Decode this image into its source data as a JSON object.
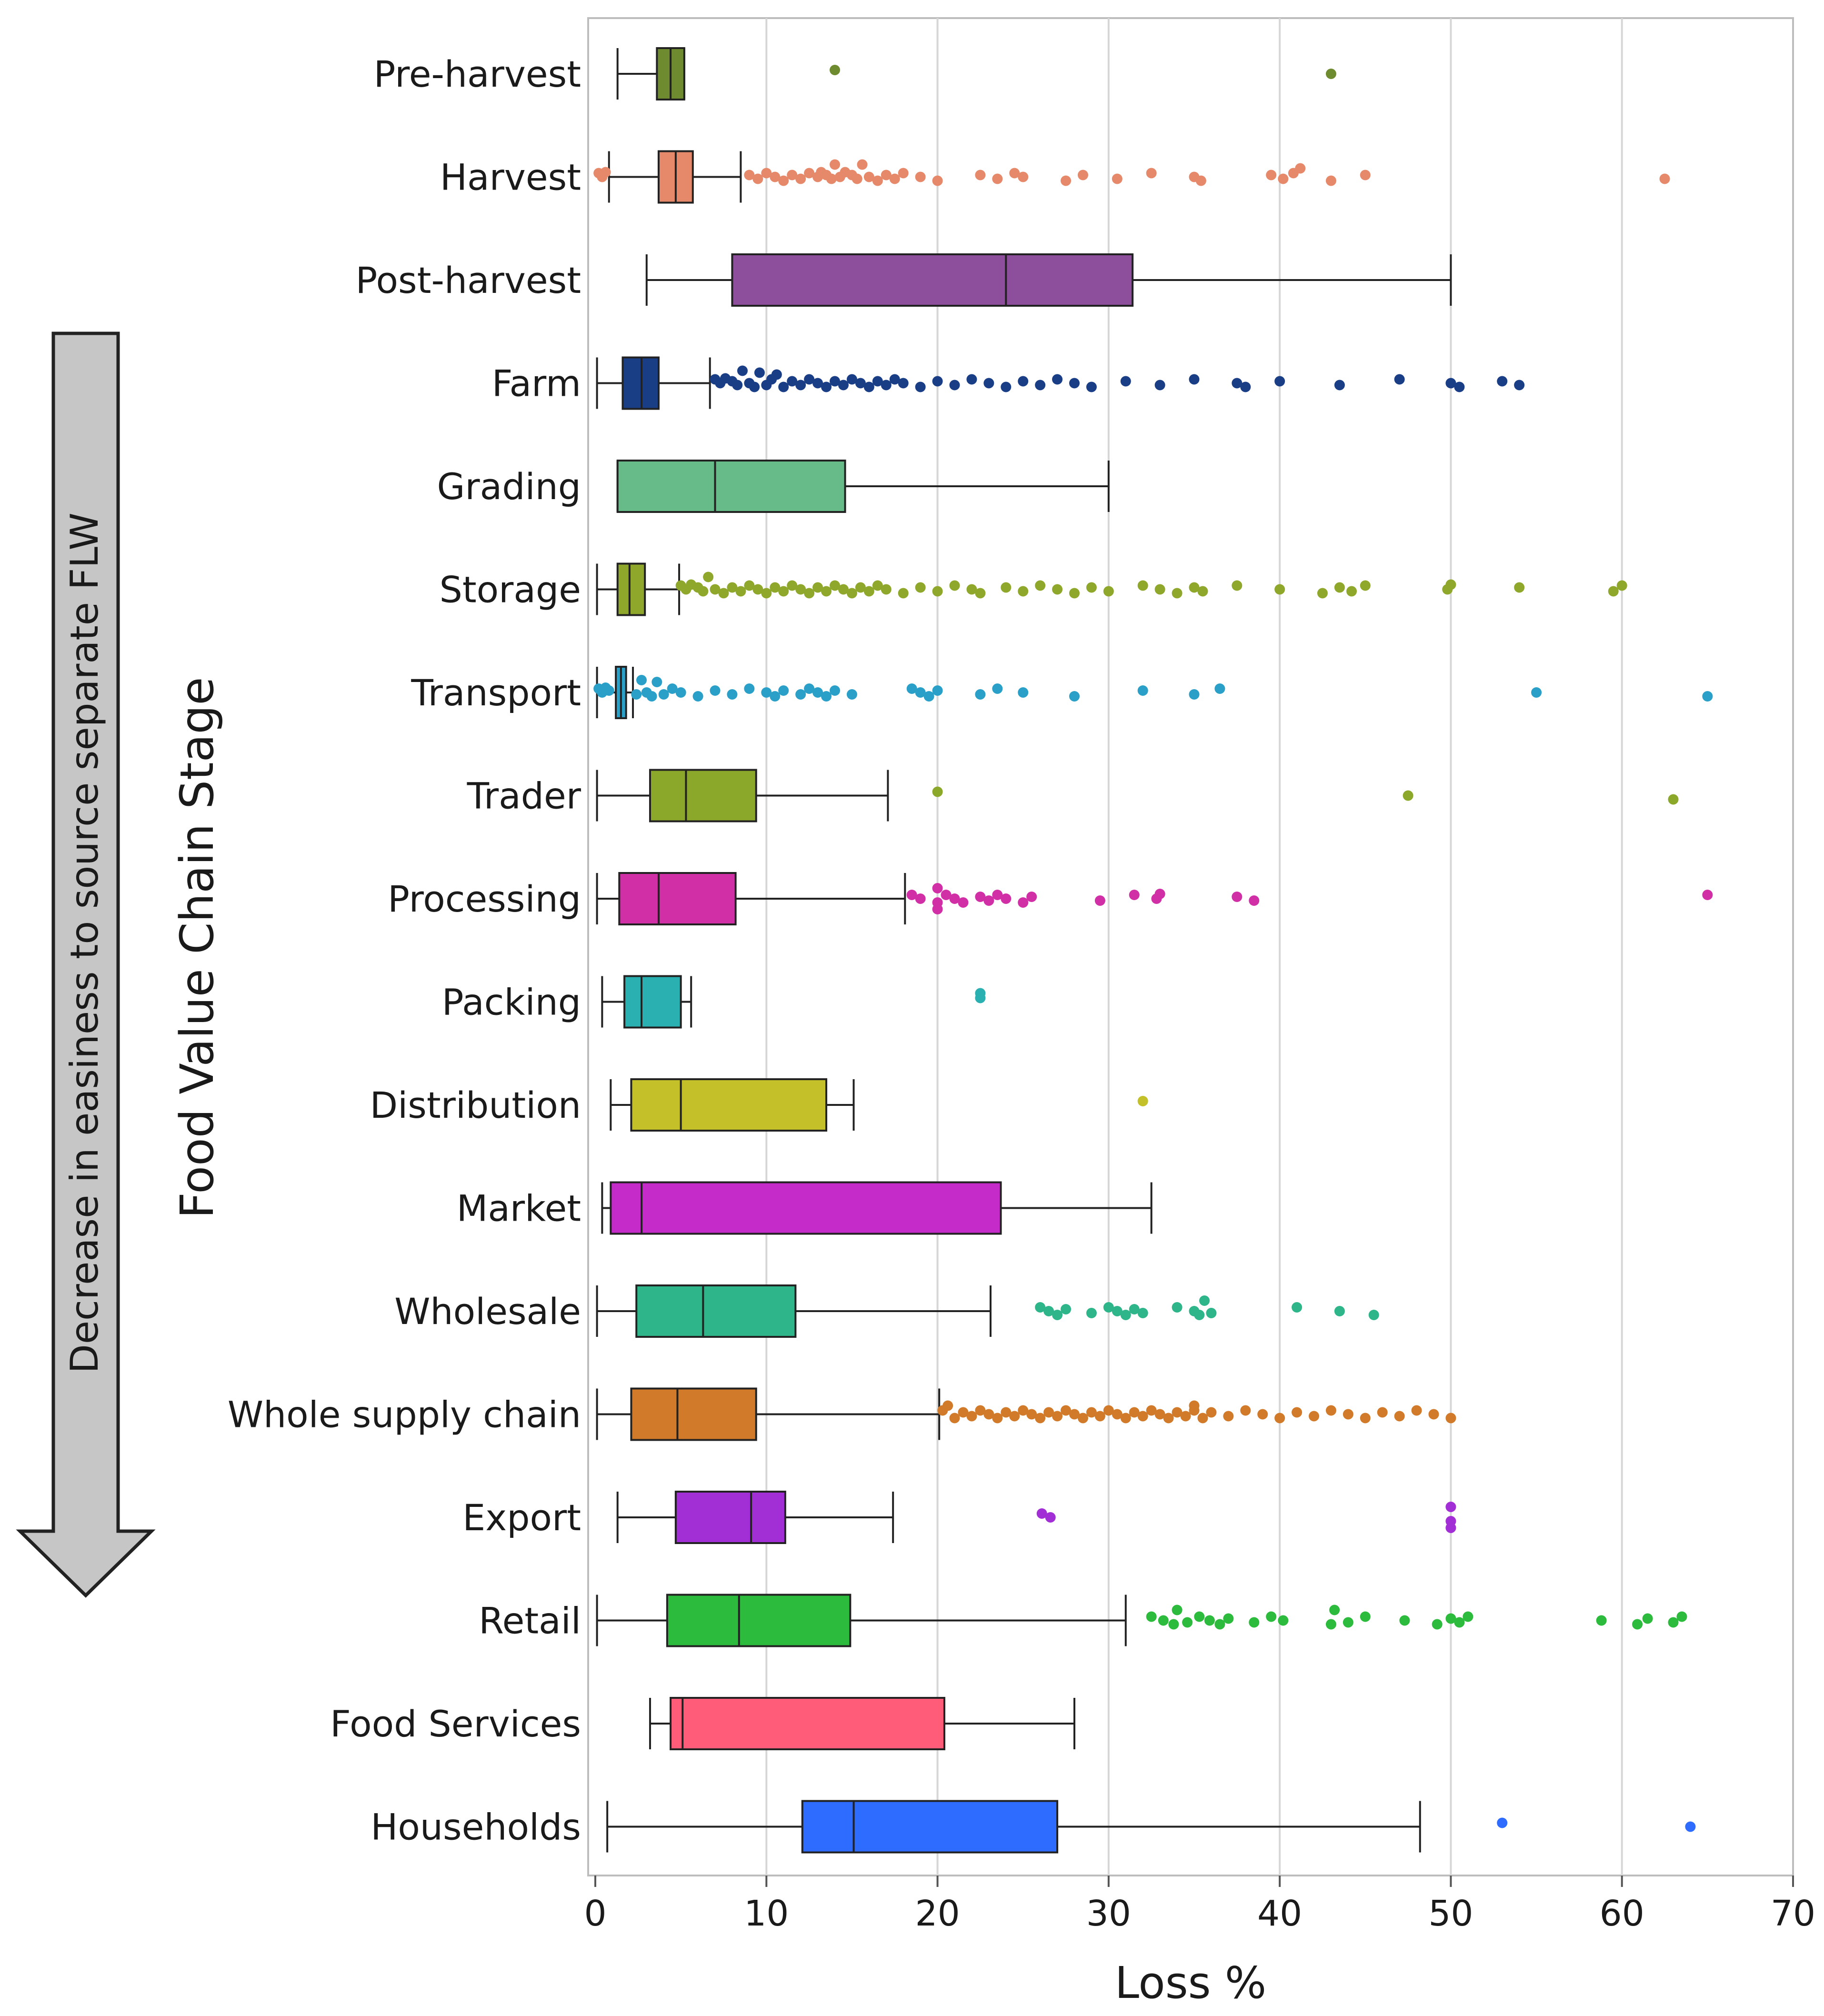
{
  "chart_data": {
    "type": "boxplot",
    "xlabel": "Loss %",
    "ylabel": "Food Value Chain Stage",
    "xlim": [
      0,
      70
    ],
    "xticks": [
      0,
      10,
      20,
      30,
      40,
      50,
      60,
      70
    ],
    "grid": "vertical",
    "arrow_label": "Decrease in easiness to source separate FLW",
    "stages": [
      {
        "name": "Pre-harvest",
        "color": "#6e8b2f",
        "whisker_low": 1.3,
        "q1": 3.6,
        "median": 4.4,
        "q3": 5.2,
        "whisker_high": 5.2,
        "outliers": [
          14,
          43
        ]
      },
      {
        "name": "Harvest",
        "color": "#e5896a",
        "whisker_low": 0.8,
        "q1": 3.7,
        "median": 4.7,
        "q3": 5.7,
        "whisker_high": 8.5,
        "outliers": [
          0.2,
          0.4,
          0.6,
          9,
          9.5,
          10,
          10.5,
          11,
          11.5,
          12,
          12.5,
          13,
          13.2,
          13.5,
          13.8,
          14,
          14.3,
          14.6,
          15,
          15.3,
          15.6,
          16,
          16.5,
          17,
          17.5,
          18,
          19,
          20,
          22.5,
          23.5,
          24.5,
          25,
          27.5,
          28.5,
          30.5,
          32.5,
          35,
          35.4,
          39.5,
          40.2,
          40.8,
          41.2,
          43,
          45,
          62.5
        ]
      },
      {
        "name": "Post-harvest",
        "color": "#8d4f9c",
        "whisker_low": 3,
        "q1": 8,
        "median": 24,
        "q3": 31.4,
        "whisker_high": 50,
        "outliers": []
      },
      {
        "name": "Farm",
        "color": "#1a3e86",
        "whisker_low": 0.1,
        "q1": 1.6,
        "median": 2.7,
        "q3": 3.7,
        "whisker_high": 6.7,
        "outliers": [
          7,
          7.3,
          7.6,
          8,
          8.3,
          8.6,
          9,
          9.3,
          9.6,
          10,
          10.3,
          10.6,
          11,
          11.5,
          12,
          12.5,
          13,
          13.5,
          14,
          14.5,
          15,
          15.5,
          16,
          16.5,
          17,
          17.5,
          18,
          19,
          20,
          21,
          22,
          23,
          24,
          25,
          26,
          27,
          28,
          29,
          31,
          33,
          35,
          37.5,
          38,
          40,
          43.5,
          47,
          50,
          50.5,
          53,
          54
        ]
      },
      {
        "name": "Grading",
        "color": "#66bb88",
        "whisker_low": 1.3,
        "q1": 1.3,
        "median": 7,
        "q3": 14.6,
        "whisker_high": 30,
        "outliers": []
      },
      {
        "name": "Storage",
        "color": "#8fa82c",
        "whisker_low": 0.1,
        "q1": 1.3,
        "median": 2,
        "q3": 2.9,
        "whisker_high": 4.9,
        "outliers": [
          5,
          5.3,
          5.6,
          6,
          6.3,
          6.6,
          7,
          7.5,
          8,
          8.5,
          9,
          9.5,
          10,
          10.5,
          11,
          11.5,
          12,
          12.5,
          13,
          13.5,
          14,
          14.5,
          15,
          15.5,
          16,
          16.5,
          17,
          18,
          19,
          20,
          21,
          22,
          22.5,
          24,
          25,
          26,
          27,
          28,
          29,
          30,
          32,
          33,
          34,
          35,
          35.5,
          37.5,
          40,
          42.5,
          43.5,
          44.2,
          45,
          49.8,
          50,
          54,
          59.5,
          60
        ]
      },
      {
        "name": "Transport",
        "color": "#2aa0c9",
        "whisker_low": 0.1,
        "q1": 1.2,
        "median": 1.5,
        "q3": 1.8,
        "whisker_high": 2.2,
        "outliers": [
          0.2,
          0.4,
          0.6,
          0.8,
          2.4,
          2.7,
          3,
          3.3,
          3.6,
          4,
          4.5,
          5,
          6,
          7,
          8,
          9,
          10,
          10.5,
          11,
          12,
          12.5,
          13,
          13.5,
          14,
          15,
          18.5,
          19,
          19.5,
          20,
          22.5,
          23.5,
          25,
          28,
          32,
          35,
          36.5,
          55,
          65
        ]
      },
      {
        "name": "Trader",
        "color": "#8ca82a",
        "whisker_low": 0.1,
        "q1": 3.2,
        "median": 5.3,
        "q3": 9.4,
        "whisker_high": 17.1,
        "outliers": [
          20,
          47.5,
          63
        ]
      },
      {
        "name": "Processing",
        "color": "#d02fa5",
        "whisker_low": 0.1,
        "q1": 1.4,
        "median": 3.7,
        "q3": 8.2,
        "whisker_high": 18.1,
        "outliers": [
          18.5,
          19,
          20,
          20,
          20,
          20.5,
          21,
          21.5,
          22.5,
          23,
          23.5,
          24,
          25,
          25.5,
          29.5,
          31.5,
          32.8,
          33,
          37.5,
          38.5,
          65
        ]
      },
      {
        "name": "Packing",
        "color": "#2ab0b0",
        "whisker_low": 0.4,
        "q1": 1.7,
        "median": 2.7,
        "q3": 5,
        "whisker_high": 5.6,
        "outliers": [
          22.5,
          22.5
        ]
      },
      {
        "name": "Distribution",
        "color": "#c3c029",
        "whisker_low": 0.9,
        "q1": 2.1,
        "median": 5,
        "q3": 13.5,
        "whisker_high": 15.1,
        "outliers": [
          32
        ]
      },
      {
        "name": "Market",
        "color": "#c42bc9",
        "whisker_low": 0.4,
        "q1": 0.9,
        "median": 2.7,
        "q3": 23.7,
        "whisker_high": 32.5,
        "outliers": []
      },
      {
        "name": "Wholesale",
        "color": "#2fb58a",
        "whisker_low": 0.1,
        "q1": 2.4,
        "median": 6.3,
        "q3": 11.7,
        "whisker_high": 23.1,
        "outliers": [
          26,
          26.5,
          27,
          27.5,
          29,
          30,
          30.5,
          31,
          31.5,
          32,
          34,
          35,
          35.3,
          35.6,
          36,
          41,
          43.5,
          45.5
        ]
      },
      {
        "name": "Whole supply chain",
        "color": "#d07a2a",
        "whisker_low": 0.1,
        "q1": 2.1,
        "median": 4.8,
        "q3": 9.4,
        "whisker_high": 20.1,
        "outliers": [
          20.3,
          20.6,
          21,
          21.5,
          22,
          22.5,
          23,
          23.5,
          24,
          24.5,
          25,
          25.5,
          26,
          26.5,
          27,
          27.5,
          28,
          28.5,
          29,
          29.5,
          30,
          30.5,
          31,
          31.5,
          32,
          32.5,
          33,
          33.5,
          34,
          34.5,
          35,
          35,
          35.5,
          36,
          37,
          38,
          39,
          40,
          41,
          42,
          43,
          44,
          45,
          46,
          47,
          48,
          49,
          50
        ]
      },
      {
        "name": "Export",
        "color": "#a22ed6",
        "whisker_low": 1.3,
        "q1": 4.7,
        "median": 9.1,
        "q3": 11.1,
        "whisker_high": 17.4,
        "outliers": [
          26.1,
          26.6,
          50,
          50,
          50
        ]
      },
      {
        "name": "Retail",
        "color": "#2cbb3c",
        "whisker_low": 0.1,
        "q1": 4.2,
        "median": 8.4,
        "q3": 14.9,
        "whisker_high": 31,
        "outliers": [
          32.5,
          33.2,
          33.8,
          34,
          34.6,
          35.3,
          35.9,
          36.5,
          37,
          38.5,
          39.5,
          40.2,
          43,
          43.2,
          44,
          45,
          47.3,
          49.2,
          50,
          50.5,
          51,
          58.8,
          60.9,
          61.5,
          63,
          63.5
        ]
      },
      {
        "name": "Food Services",
        "color": "#ff5c7a",
        "whisker_low": 3.2,
        "q1": 4.4,
        "median": 5.1,
        "q3": 20.4,
        "whisker_high": 28,
        "outliers": []
      },
      {
        "name": "Households",
        "color": "#2e6cff",
        "whisker_low": 0.7,
        "q1": 12.1,
        "median": 15.1,
        "q3": 27,
        "whisker_high": 48.2,
        "outliers": [
          53,
          64
        ]
      }
    ]
  }
}
